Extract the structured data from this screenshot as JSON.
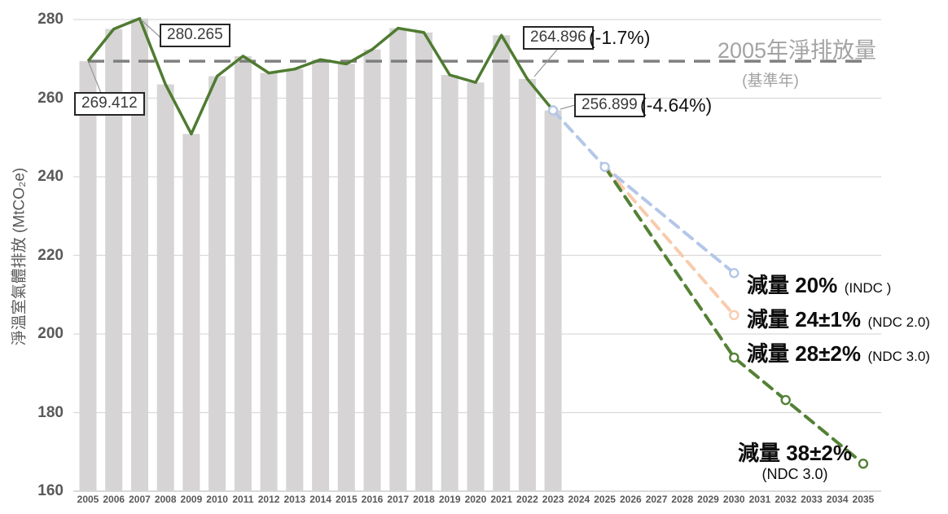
{
  "axes": {
    "y_title": "淨溫室氣體排放 (MtCO₂e)",
    "y_ticks": [
      280,
      260,
      240,
      220,
      200,
      180,
      160
    ],
    "x_years": [
      2005,
      2006,
      2007,
      2008,
      2009,
      2010,
      2011,
      2012,
      2013,
      2014,
      2015,
      2016,
      2017,
      2018,
      2019,
      2020,
      2021,
      2022,
      2023,
      2024,
      2025,
      2026,
      2027,
      2028,
      2029,
      2030,
      2031,
      2032,
      2033,
      2034,
      2035
    ]
  },
  "colors": {
    "bar": "#d6d4d4",
    "hist_line": "#4f7b31",
    "baseline_dash": "#7f7f7f",
    "proj_blue": "#b4c7e7",
    "proj_orange": "#f8cbad",
    "proj_green": "#538135",
    "gridline": "#d9d9d9",
    "axis_line": "#c2c2c2",
    "tick_text": "#595959",
    "leader": "#9b9b9b"
  },
  "chart_data": {
    "type": "bar",
    "title": "",
    "ylabel": "淨溫室氣體排放 (MtCO₂e)",
    "ylim": [
      160,
      280
    ],
    "xlim": [
      2005,
      2035
    ],
    "grid": "horizontal",
    "categories": [
      2005,
      2006,
      2007,
      2008,
      2009,
      2010,
      2011,
      2012,
      2013,
      2014,
      2015,
      2016,
      2017,
      2018,
      2019,
      2020,
      2021,
      2022,
      2023
    ],
    "bar_values": [
      269.412,
      277.6,
      280.265,
      263.5,
      250.9,
      265.6,
      270.7,
      266.4,
      267.4,
      269.8,
      268.7,
      272.4,
      277.8,
      276.7,
      265.9,
      264.0,
      276.0,
      264.896,
      256.899
    ],
    "line_overlay_follows_bars": true,
    "baseline": {
      "value": 269.412
    },
    "projections": [
      {
        "name": "INDC",
        "color_key": "proj_blue",
        "points": [
          [
            2023,
            256.899
          ],
          [
            2025,
            242.5
          ],
          [
            2030,
            215.5
          ]
        ],
        "markers": [
          [
            2023,
            256.899
          ],
          [
            2025,
            242.5
          ],
          [
            2030,
            215.5
          ]
        ]
      },
      {
        "name": "NDC 2.0",
        "color_key": "proj_orange",
        "points": [
          [
            2025,
            242.5
          ],
          [
            2030,
            204.8
          ]
        ],
        "markers": [
          [
            2030,
            204.8
          ]
        ]
      },
      {
        "name": "NDC 3.0",
        "color_key": "proj_green",
        "points": [
          [
            2025,
            242.5
          ],
          [
            2030,
            194.0
          ],
          [
            2032,
            183.2
          ],
          [
            2035,
            167.0
          ]
        ],
        "markers": [
          [
            2030,
            194.0
          ],
          [
            2032,
            183.2
          ],
          [
            2035,
            167.0
          ]
        ]
      }
    ]
  },
  "annotations": {
    "callout_2005": "269.412",
    "callout_2007": "280.265",
    "callout_2022": "264.896",
    "callout_2022_pct": "(-1.7%)",
    "callout_2023": "256.899",
    "callout_2023_pct": "(-4.64%)",
    "baseline_label": "2005年淨排放量",
    "baseline_sublabel": "(基準年)",
    "proj_indc_label": "減量 20%",
    "proj_indc_sub": "(INDC )",
    "proj_ndc2_label": "減量 24±1%",
    "proj_ndc2_sub": "(NDC 2.0)",
    "proj_ndc3_label": "減量 28±2%",
    "proj_ndc3_sub": "(NDC 3.0)",
    "proj_ndc3_final_label": "減量 38±2%",
    "proj_ndc3_final_sub": "(NDC 3.0)"
  }
}
